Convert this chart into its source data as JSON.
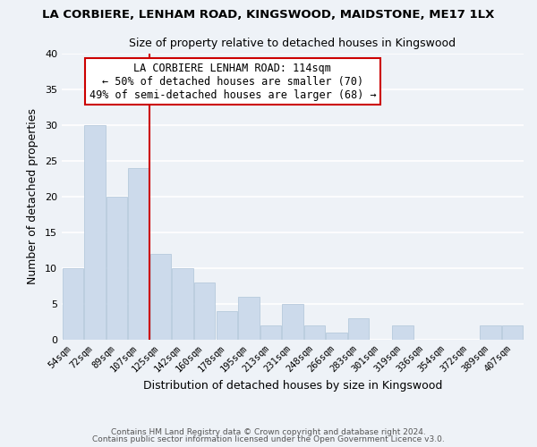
{
  "title": "LA CORBIERE, LENHAM ROAD, KINGSWOOD, MAIDSTONE, ME17 1LX",
  "subtitle": "Size of property relative to detached houses in Kingswood",
  "xlabel": "Distribution of detached houses by size in Kingswood",
  "ylabel": "Number of detached properties",
  "bar_color": "#ccdaeb",
  "bar_edgecolor": "#afc4d9",
  "categories": [
    "54sqm",
    "72sqm",
    "89sqm",
    "107sqm",
    "125sqm",
    "142sqm",
    "160sqm",
    "178sqm",
    "195sqm",
    "213sqm",
    "231sqm",
    "248sqm",
    "266sqm",
    "283sqm",
    "301sqm",
    "319sqm",
    "336sqm",
    "354sqm",
    "372sqm",
    "389sqm",
    "407sqm"
  ],
  "values": [
    10,
    30,
    20,
    24,
    12,
    10,
    8,
    4,
    6,
    2,
    5,
    2,
    1,
    3,
    0,
    2,
    0,
    0,
    0,
    2,
    2
  ],
  "ylim": [
    0,
    40
  ],
  "yticks": [
    0,
    5,
    10,
    15,
    20,
    25,
    30,
    35,
    40
  ],
  "vline_x": 3.5,
  "vline_color": "#cc0000",
  "annotation_line1": "LA CORBIERE LENHAM ROAD: 114sqm",
  "annotation_line2": "← 50% of detached houses are smaller (70)",
  "annotation_line3": "49% of semi-detached houses are larger (68) →",
  "footer1": "Contains HM Land Registry data © Crown copyright and database right 2024.",
  "footer2": "Contains public sector information licensed under the Open Government Licence v3.0.",
  "background_color": "#eef2f7",
  "grid_color": "#ffffff",
  "annotation_box_edgecolor": "#cc0000",
  "annotation_box_facecolor": "#ffffff"
}
